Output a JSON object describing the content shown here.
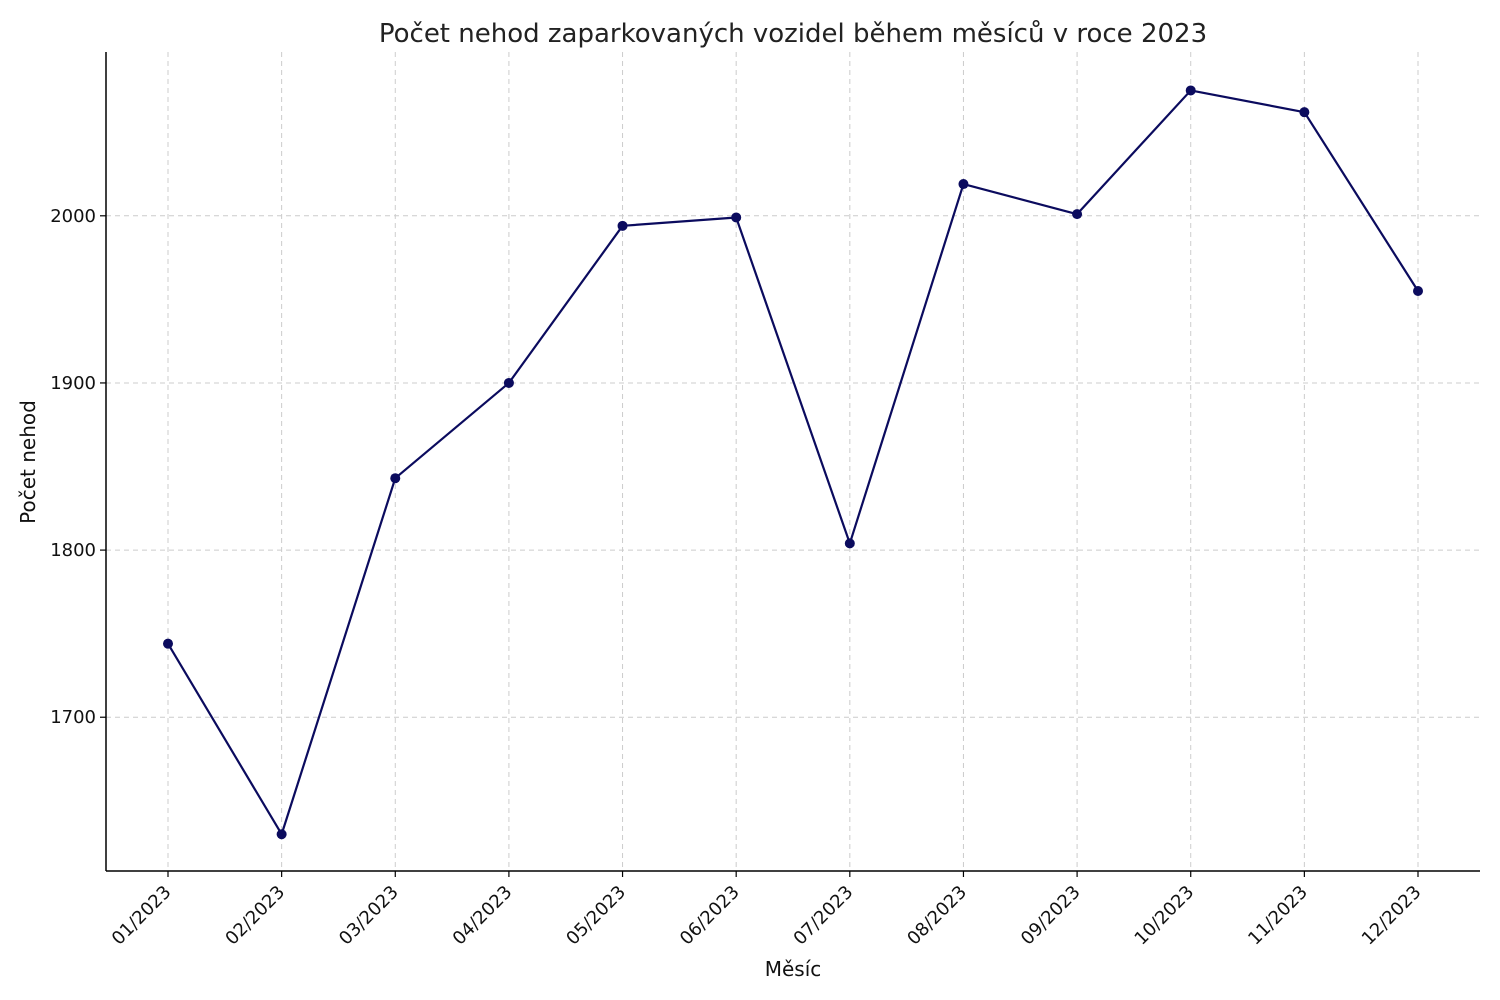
{
  "chart_data": {
    "type": "line",
    "title": "Počet nehod zaparkovaných vozidel během měsíců v roce 2023",
    "xlabel": "Měsíc",
    "ylabel": "Počet nehod",
    "categories": [
      "01/2023",
      "02/2023",
      "03/2023",
      "04/2023",
      "05/2023",
      "06/2023",
      "07/2023",
      "08/2023",
      "09/2023",
      "10/2023",
      "11/2023",
      "12/2023"
    ],
    "series": [
      {
        "values": [
          1744,
          1630,
          1843,
          1900,
          1994,
          1999,
          1804,
          2019,
          2001,
          2075,
          2062,
          1955
        ],
        "color": "#0b0b5e"
      }
    ],
    "yticks": [
      1700,
      1800,
      1900,
      2000
    ],
    "ylim": [
      1608,
      2098
    ],
    "grid": true,
    "legend": "none"
  }
}
